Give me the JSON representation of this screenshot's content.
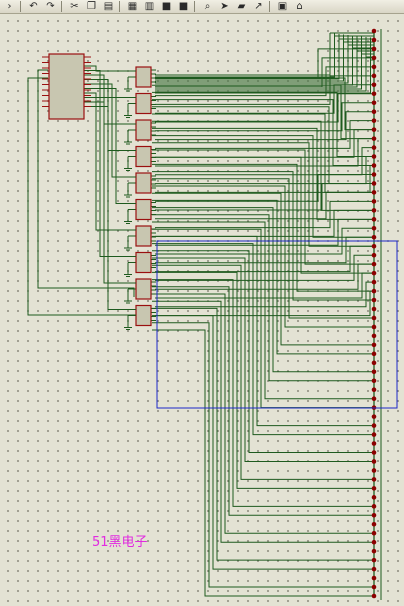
{
  "toolbar": {
    "buttons": [
      {
        "icon": "chevron-icon",
        "glyph": "›"
      },
      {
        "icon": "undo-icon",
        "glyph": "↶"
      },
      {
        "icon": "redo-icon",
        "glyph": "↷"
      },
      {
        "icon": "cut-icon",
        "glyph": "✂"
      },
      {
        "icon": "copy-icon",
        "glyph": "❐"
      },
      {
        "icon": "paste-icon",
        "glyph": "▤"
      },
      {
        "icon": "block-copy-icon",
        "glyph": "▦"
      },
      {
        "icon": "block-move-icon",
        "glyph": "▥"
      },
      {
        "icon": "block-rotate-icon",
        "glyph": "■"
      },
      {
        "icon": "block-delete-icon",
        "glyph": "■"
      },
      {
        "icon": "zoom-icon",
        "glyph": "⌕"
      },
      {
        "icon": "pick-device-icon",
        "glyph": "➤"
      },
      {
        "icon": "make-device-icon",
        "glyph": "▰"
      },
      {
        "icon": "wire-autoroute-icon",
        "glyph": "↗"
      },
      {
        "icon": "annotate-icon",
        "glyph": "▣"
      },
      {
        "icon": "property-assign-icon",
        "glyph": "⌂"
      }
    ]
  },
  "colors": {
    "wire": "#1e5a1e",
    "component_fill": "#c8c6b0",
    "component_outline": "#9a1010",
    "pin_dot": "#8c0000",
    "selection_box": "#1e28c8",
    "background": "#e3e2d3",
    "watermark": "#e22ce0"
  },
  "schematic": {
    "chip": {
      "name": "microcontroller",
      "pins_per_side": 10
    },
    "drivers": {
      "count": 10
    },
    "led_matrix": {
      "row_count": 64
    }
  },
  "watermark": {
    "text": "51黑电子"
  }
}
